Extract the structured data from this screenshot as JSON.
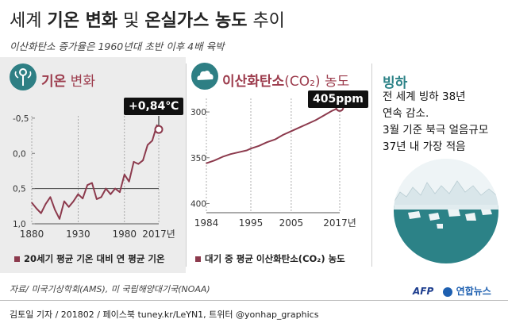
{
  "header": {
    "title_prefix": "세계 ",
    "title_bold": "기온 변화",
    "title_mid": " 및 ",
    "title_bold2": "온실가스 농도",
    "title_suffix": " 추이",
    "subtitle": "이산화탄소 증가율은 1960년대 초반 이후 4배 육박"
  },
  "temperature_panel": {
    "title_bold": "기온",
    "title_rest": " 변화",
    "callout": "+0,84℃",
    "legend": "20세기 평균 기온 대비 연 평균 기온",
    "y_ticks": [
      "1,0",
      "0,5",
      "0,0",
      "-0,5"
    ],
    "x_ticks": [
      "1880",
      "1930",
      "1980",
      "2017년"
    ]
  },
  "co2_panel": {
    "title_bold": "이산화탄소",
    "title_rest": "(CO₂) 농도",
    "callout": "405ppm",
    "legend": "대기 중 평균 이산화탄소(CO₂) 농도",
    "y_ticks": [
      "400",
      "350",
      "300"
    ],
    "x_ticks": [
      "1984",
      "1995",
      "2005",
      "2017년"
    ]
  },
  "ice_panel": {
    "title": "빙하",
    "lines": [
      "전 세계 빙하 38년",
      "연속 감소.",
      "3월 기준 북극 얼음규모",
      "37년 내 가장 적음"
    ]
  },
  "source": "자료/ 미국기상학회(AMS), 미 국립해양대기국(NOAA)",
  "footer": "김토일 기자 / 201802 / 페이스북 tuney.kr/LeYN1, 트위터 @yonhap_graphics",
  "logos": {
    "afp": "AFP",
    "yonhap": "연합뉴스"
  },
  "colors": {
    "series": "#8c3a4d",
    "accent": "#9c3b4c",
    "teal": "#2e7f84",
    "ice_bg": "#2c8287"
  },
  "chart_data": [
    {
      "type": "line",
      "x": [
        1880,
        1885,
        1890,
        1895,
        1900,
        1905,
        1910,
        1915,
        1920,
        1925,
        1930,
        1935,
        1940,
        1945,
        1950,
        1955,
        1960,
        1965,
        1970,
        1975,
        1980,
        1985,
        1990,
        1995,
        2000,
        2005,
        2010,
        2015,
        2017
      ],
      "series": [
        {
          "name": "",
          "values": [
            -0.2,
            -0.28,
            -0.35,
            -0.22,
            -0.12,
            -0.3,
            -0.43,
            -0.18,
            -0.26,
            -0.18,
            -0.08,
            -0.14,
            0.05,
            0.08,
            -0.15,
            -0.12,
            0.0,
            -0.08,
            0.0,
            -0.05,
            0.2,
            0.1,
            0.38,
            0.35,
            0.4,
            0.62,
            0.68,
            0.9,
            0.84
          ]
        }
      ],
      "ylim": [
        -0.5,
        1.1
      ],
      "y_ticks": [
        -0.5,
        0.0,
        0.5,
        1.0
      ],
      "x_ticks": [
        1880,
        1930,
        1980,
        2017
      ],
      "annotation": "+0,84℃",
      "grid": false
    },
    {
      "type": "line",
      "x": [
        1984,
        1986,
        1988,
        1990,
        1992,
        1994,
        1995,
        1997,
        1999,
        2001,
        2003,
        2005,
        2007,
        2009,
        2011,
        2013,
        2015,
        2017
      ],
      "series": [
        {
          "name": "",
          "values": [
            344,
            347,
            351,
            354,
            356,
            358,
            360,
            363,
            367,
            370,
            375,
            379,
            383,
            387,
            391,
            396,
            401,
            405
          ]
        }
      ],
      "ylim": [
        290,
        420
      ],
      "y_ticks": [
        300,
        350,
        400
      ],
      "x_ticks": [
        1984,
        1995,
        2005,
        2017
      ],
      "annotation": "405ppm",
      "grid": false
    }
  ]
}
